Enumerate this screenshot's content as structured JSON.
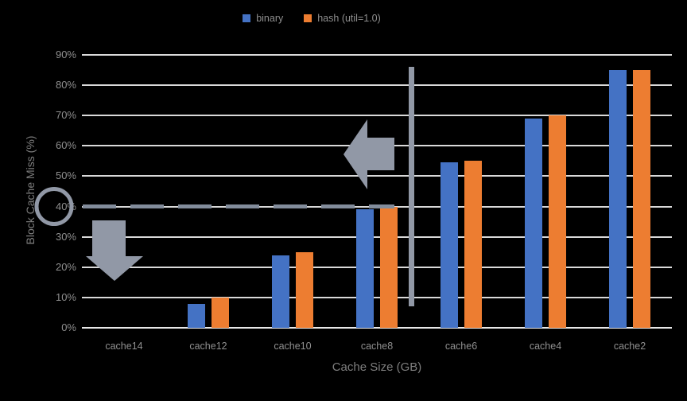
{
  "chart_data": {
    "type": "bar",
    "title": "",
    "categories": [
      "cache14",
      "cache12",
      "cache10",
      "cache8",
      "cache6",
      "cache4",
      "cache2"
    ],
    "series": [
      {
        "name": "binary",
        "color": "#4472C4",
        "values": [
          0,
          8,
          24,
          39,
          54.5,
          69,
          85
        ]
      },
      {
        "name": "hash (util=1.0)",
        "color": "#ED7D31",
        "values": [
          0,
          10,
          25,
          40,
          55,
          70,
          85
        ]
      }
    ],
    "xlabel": "Cache Size (GB)",
    "ylabel": "Block Cache Miss (%)",
    "ylim": [
      0,
      90
    ],
    "ytick_step": 10,
    "ytick_suffix": "%",
    "grid": true,
    "legend_position": "top-center",
    "annotations": [
      {
        "type": "dashed-line",
        "y_value": 40,
        "note": "horizontal dashed threshold line at 40% spanning from axis to cache8 bars"
      },
      {
        "type": "circle-highlight",
        "y_value": 40,
        "note": "gray ring around the 40% axis label"
      },
      {
        "type": "down-arrow",
        "note": "block arrow pointing down below the 40% line over cache14 region"
      },
      {
        "type": "left-arrow",
        "note": "block arrow pointing left above cache8 bars"
      },
      {
        "type": "vertical-line",
        "note": "gray vertical separator line between cache8 and cache6"
      }
    ],
    "colors": {
      "gridline": "#D9D9D9",
      "axis_line": "#E8E8E8",
      "text": "#8f8f8f",
      "annotation": "#9198A6",
      "annotation_dash": "#828C9B"
    }
  }
}
